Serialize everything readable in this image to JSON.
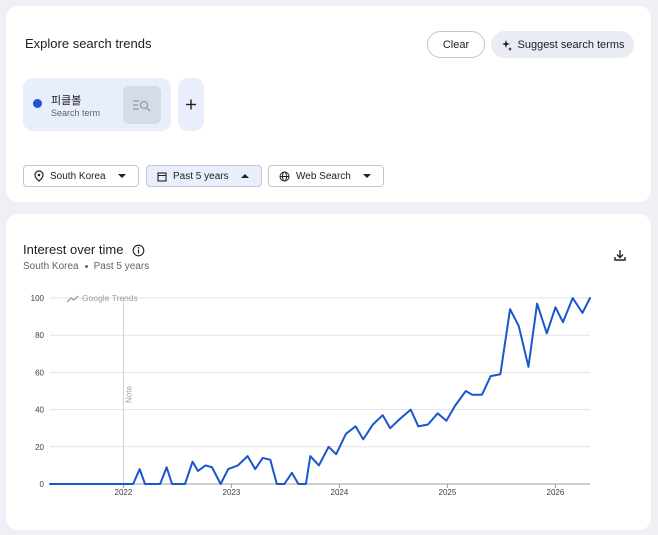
{
  "header": {
    "title": "Explore search trends",
    "clear": "Clear",
    "suggest": "Suggest search terms"
  },
  "term": {
    "name": "피클볼",
    "kind": "Search term"
  },
  "filters": {
    "region": "South Korea",
    "period": "Past 5 years",
    "property": "Web Search"
  },
  "panel": {
    "title": "Interest over time",
    "region": "South Korea",
    "period": "Past 5 years"
  },
  "chart_data": {
    "type": "line",
    "watermark": "Google Trends",
    "annotation": {
      "label": "Note",
      "x": 2022.0
    },
    "x": [
      2021.32,
      2021.51,
      2021.69,
      2021.88,
      2022.0,
      2022.09,
      2022.15,
      2022.2,
      2022.34,
      2022.4,
      2022.45,
      2022.57,
      2022.64,
      2022.69,
      2022.76,
      2022.82,
      2022.9,
      2022.97,
      2023.06,
      2023.15,
      2023.22,
      2023.29,
      2023.36,
      2023.42,
      2023.49,
      2023.56,
      2023.62,
      2023.69,
      2023.73,
      2023.81,
      2023.9,
      2023.97,
      2024.06,
      2024.15,
      2024.22,
      2024.31,
      2024.4,
      2024.47,
      2024.56,
      2024.66,
      2024.73,
      2024.82,
      2024.91,
      2024.99,
      2025.07,
      2025.17,
      2025.23,
      2025.32,
      2025.4,
      2025.49,
      2025.58,
      2025.66,
      2025.75,
      2025.83,
      2025.92,
      2026.0,
      2026.07,
      2026.16,
      2026.25,
      2026.32
    ],
    "series": [
      {
        "name": "피클볼",
        "color": "#1a56cc",
        "values": [
          0,
          0,
          0,
          0,
          0,
          0,
          8,
          0,
          0,
          9,
          0,
          0,
          12,
          7,
          10,
          9,
          0,
          8,
          10,
          15,
          8,
          14,
          13,
          0,
          0,
          6,
          0,
          0,
          15,
          10,
          20,
          16,
          27,
          31,
          24,
          32,
          37,
          30,
          35,
          40,
          31,
          32,
          38,
          34,
          42,
          50,
          48,
          48,
          58,
          59,
          94,
          85,
          63,
          97,
          81,
          95,
          87,
          100,
          92,
          100
        ]
      }
    ],
    "xlim": [
      2021.32,
      2026.32
    ],
    "xticks": [
      2022,
      2023,
      2024,
      2025,
      2026
    ],
    "ylim": [
      0,
      100
    ],
    "yticks": [
      0,
      20,
      40,
      60,
      80,
      100
    ],
    "grid": true
  }
}
